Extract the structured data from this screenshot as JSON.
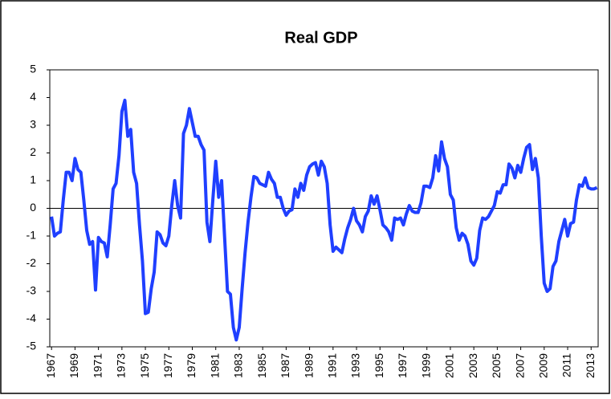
{
  "chart_data": {
    "type": "line",
    "title": "Real GDP",
    "xlim": [
      1966.85,
      2013.6
    ],
    "xticks": [
      1967,
      1969,
      1971,
      1973,
      1975,
      1977,
      1979,
      1981,
      1983,
      1985,
      1987,
      1989,
      1991,
      1993,
      1995,
      1997,
      1999,
      2001,
      2003,
      2005,
      2007,
      2009,
      2011,
      2013
    ],
    "ylim": [
      -5,
      5
    ],
    "yticks": [
      -5,
      -4,
      -3,
      -2,
      -1,
      0,
      1,
      2,
      3,
      4,
      5
    ],
    "x": [
      1967,
      1967.25,
      1967.5,
      1967.75,
      1968,
      1968.25,
      1968.5,
      1968.75,
      1969,
      1969.25,
      1969.5,
      1969.75,
      1970,
      1970.25,
      1970.5,
      1970.75,
      1971,
      1971.25,
      1971.5,
      1971.75,
      1972,
      1972.25,
      1972.5,
      1972.75,
      1973,
      1973.25,
      1973.5,
      1973.75,
      1974,
      1974.25,
      1974.5,
      1974.75,
      1975,
      1975.25,
      1975.5,
      1975.75,
      1976,
      1976.25,
      1976.5,
      1976.75,
      1977,
      1977.25,
      1977.5,
      1977.75,
      1978,
      1978.25,
      1978.5,
      1978.75,
      1979,
      1979.25,
      1979.5,
      1979.75,
      1980,
      1980.25,
      1980.5,
      1980.75,
      1981,
      1981.25,
      1981.5,
      1981.75,
      1982,
      1982.25,
      1982.5,
      1982.75,
      1983,
      1983.25,
      1983.5,
      1983.75,
      1984,
      1984.25,
      1984.5,
      1984.75,
      1985,
      1985.25,
      1985.5,
      1985.75,
      1986,
      1986.25,
      1986.5,
      1986.75,
      1987,
      1987.25,
      1987.5,
      1987.75,
      1988,
      1988.25,
      1988.5,
      1988.75,
      1989,
      1989.25,
      1989.5,
      1989.75,
      1990,
      1990.25,
      1990.5,
      1990.75,
      1991,
      1991.25,
      1991.5,
      1991.75,
      1992,
      1992.25,
      1992.5,
      1992.75,
      1993,
      1993.25,
      1993.5,
      1993.75,
      1994,
      1994.25,
      1994.5,
      1994.75,
      1995,
      1995.25,
      1995.5,
      1995.75,
      1996,
      1996.25,
      1996.5,
      1996.75,
      1997,
      1997.25,
      1997.5,
      1997.75,
      1998,
      1998.25,
      1998.5,
      1998.75,
      1999,
      1999.25,
      1999.5,
      1999.75,
      2000,
      2000.25,
      2000.5,
      2000.75,
      2001,
      2001.25,
      2001.5,
      2001.75,
      2002,
      2002.25,
      2002.5,
      2002.75,
      2003,
      2003.25,
      2003.5,
      2003.75,
      2004,
      2004.25,
      2004.5,
      2004.75,
      2005,
      2005.25,
      2005.5,
      2005.75,
      2006,
      2006.25,
      2006.5,
      2006.75,
      2007,
      2007.25,
      2007.5,
      2007.75,
      2008,
      2008.25,
      2008.5,
      2008.75,
      2009,
      2009.25,
      2009.5,
      2009.75,
      2010,
      2010.25,
      2010.5,
      2010.75,
      2011,
      2011.25,
      2011.5,
      2011.75,
      2012,
      2012.25,
      2012.5,
      2012.75,
      2013,
      2013.25,
      2013.5
    ],
    "series": [
      {
        "color": "#1f3fff",
        "values": [
          -0.3,
          -1.0,
          -0.9,
          -0.85,
          0.3,
          1.3,
          1.3,
          1.0,
          1.8,
          1.4,
          1.3,
          0.3,
          -0.8,
          -1.3,
          -1.2,
          -2.95,
          -1.05,
          -1.2,
          -1.25,
          -1.75,
          -0.6,
          0.7,
          0.9,
          1.9,
          3.5,
          3.9,
          2.6,
          2.85,
          1.3,
          0.9,
          -0.6,
          -1.9,
          -3.8,
          -3.75,
          -2.9,
          -2.3,
          -0.85,
          -0.95,
          -1.25,
          -1.35,
          -1.0,
          0.1,
          1.0,
          0.1,
          -0.35,
          2.7,
          3.0,
          3.6,
          3.1,
          2.6,
          2.6,
          2.3,
          2.1,
          -0.5,
          -1.2,
          0.3,
          1.7,
          0.4,
          1.0,
          -1.0,
          -3.0,
          -3.1,
          -4.3,
          -4.75,
          -4.3,
          -2.9,
          -1.6,
          -0.5,
          0.4,
          1.15,
          1.1,
          0.9,
          0.85,
          0.8,
          1.3,
          1.05,
          0.9,
          0.4,
          0.4,
          0.0,
          -0.25,
          -0.1,
          -0.05,
          0.7,
          0.4,
          0.9,
          0.65,
          1.2,
          1.5,
          1.6,
          1.65,
          1.2,
          1.7,
          1.5,
          0.9,
          -0.6,
          -1.55,
          -1.4,
          -1.5,
          -1.6,
          -1.1,
          -0.7,
          -0.4,
          0.0,
          -0.45,
          -0.6,
          -0.85,
          -0.3,
          -0.1,
          0.45,
          0.15,
          0.45,
          -0.05,
          -0.6,
          -0.7,
          -0.85,
          -1.15,
          -0.35,
          -0.4,
          -0.35,
          -0.6,
          -0.2,
          0.1,
          -0.1,
          -0.15,
          -0.15,
          0.2,
          0.8,
          0.8,
          0.75,
          1.1,
          1.9,
          1.35,
          2.4,
          1.8,
          1.5,
          0.5,
          0.3,
          -0.7,
          -1.15,
          -0.9,
          -1.0,
          -1.3,
          -1.9,
          -2.05,
          -1.8,
          -0.8,
          -0.35,
          -0.4,
          -0.3,
          -0.1,
          0.1,
          0.6,
          0.55,
          0.85,
          0.85,
          1.6,
          1.45,
          1.1,
          1.55,
          1.3,
          1.8,
          2.2,
          2.3,
          1.4,
          1.8,
          1.1,
          -1.0,
          -2.7,
          -3.0,
          -2.9,
          -2.1,
          -1.9,
          -1.2,
          -0.8,
          -0.4,
          -1.0,
          -0.55,
          -0.5,
          0.3,
          0.85,
          0.8,
          1.1,
          0.75,
          0.7,
          0.7,
          0.75
        ]
      }
    ]
  }
}
